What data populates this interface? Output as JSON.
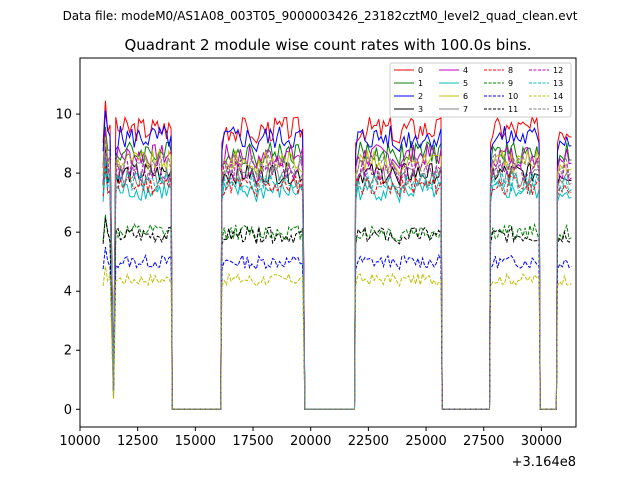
{
  "figure": {
    "suptitle": "Data file: modeM0/AS1A08_003T05_9000003426_23182cztM0_level2_quad_clean.evt",
    "offset_text": "+3.164e8"
  },
  "chart_data": {
    "type": "line",
    "title": "Quadrant 2 module wise count rates with 100.0s bins.",
    "xlabel": "",
    "ylabel": "",
    "xlim": [
      10000,
      31500
    ],
    "ylim": [
      -0.6,
      11.9
    ],
    "x_offset": 316400000,
    "xticks": [
      10000,
      12500,
      15000,
      17500,
      20000,
      22500,
      25000,
      27500,
      30000
    ],
    "xtick_labels": [
      "10000",
      "12500",
      "15000",
      "17500",
      "20000",
      "22500",
      "25000",
      "27500",
      "30000"
    ],
    "yticks": [
      0,
      2,
      4,
      6,
      8,
      10
    ],
    "ytick_labels": [
      "0",
      "2",
      "4",
      "6",
      "8",
      "10"
    ],
    "grid": false,
    "legend_position": "top-right",
    "segments": [
      {
        "start": 11000,
        "end": 11300
      },
      {
        "start": 11450,
        "end": 13900
      },
      {
        "start": 16150,
        "end": 17400
      },
      {
        "start": 17650,
        "end": 19650
      },
      {
        "start": 21950,
        "end": 23550
      },
      {
        "start": 23850,
        "end": 25600
      },
      {
        "start": 27800,
        "end": 29900
      },
      {
        "start": 30700,
        "end": 31300
      }
    ],
    "gap_ranges": [
      [
        14000,
        16100
      ],
      [
        19750,
        21900
      ],
      [
        25700,
        27750
      ],
      [
        29950,
        30650
      ]
    ],
    "series": [
      {
        "name": "0",
        "color": "#ff0000",
        "dash": "solid",
        "level": 9.5
      },
      {
        "name": "1",
        "color": "#008000",
        "dash": "solid",
        "level": 8.7
      },
      {
        "name": "2",
        "color": "#0000ff",
        "dash": "solid",
        "level": 9.2
      },
      {
        "name": "3",
        "color": "#000000",
        "dash": "solid",
        "level": 8.0
      },
      {
        "name": "4",
        "color": "#bf00bf",
        "dash": "solid",
        "level": 8.6
      },
      {
        "name": "5",
        "color": "#00bfbf",
        "dash": "solid",
        "level": 7.4
      },
      {
        "name": "6",
        "color": "#bfbf00",
        "dash": "solid",
        "level": 8.4
      },
      {
        "name": "7",
        "color": "#808080",
        "dash": "solid",
        "level": 7.9
      },
      {
        "name": "8",
        "color": "#ff0000",
        "dash": "dashed",
        "level": 7.6
      },
      {
        "name": "9",
        "color": "#008000",
        "dash": "dashed",
        "level": 6.0
      },
      {
        "name": "10",
        "color": "#0000ff",
        "dash": "dashed",
        "level": 5.0
      },
      {
        "name": "11",
        "color": "#000000",
        "dash": "dashed",
        "level": 5.9
      },
      {
        "name": "12",
        "color": "#bf00bf",
        "dash": "dashed",
        "level": 8.1
      },
      {
        "name": "13",
        "color": "#00bfbf",
        "dash": "dashed",
        "level": 7.7
      },
      {
        "name": "14",
        "color": "#bfbf00",
        "dash": "dashed",
        "level": 4.4
      },
      {
        "name": "15",
        "color": "#808080",
        "dash": "dashed",
        "level": 8.3
      }
    ]
  }
}
